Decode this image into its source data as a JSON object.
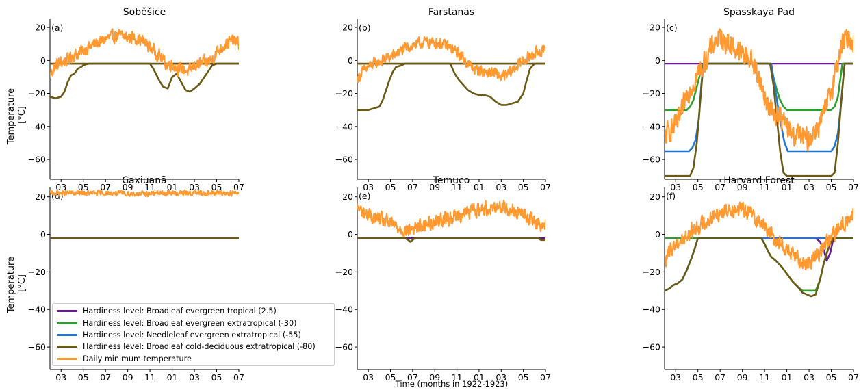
{
  "chart_data": {
    "type": "line",
    "xlabel": "Time (months in 1922-1923)",
    "ylabel": "Temperature\n[°C]",
    "x_tick_labels": [
      "03",
      "05",
      "07",
      "09",
      "11",
      "01",
      "03",
      "05",
      "07"
    ],
    "x_months": [
      "1922-02",
      "1923-07"
    ],
    "y_ticks": [
      20,
      0,
      -20,
      -40,
      -60
    ],
    "y_tick_labels": [
      "20",
      "0",
      "−20",
      "−40",
      "−60"
    ],
    "ylim": [
      -72,
      25
    ],
    "legend": {
      "placement": "lower-right of panel (d)",
      "entries": [
        {
          "label": "Hardiness level: Broadleaf evergreen tropical (2.5)",
          "color": "#6a1b9a"
        },
        {
          "label": "Hardiness level: Broadleaf evergreen extratropical (-30)",
          "color": "#2ca02c"
        },
        {
          "label": "Hardiness level: Needleleaf evergreen extratropical (-55)",
          "color": "#1f77d4"
        },
        {
          "label": "Hardiness level: Broadleaf cold-deciduous extratropical (-80)",
          "color": "#6b5a14"
        },
        {
          "label": "Daily minimum temperature",
          "color": "#ff9a33"
        }
      ]
    },
    "panels": [
      {
        "title": "Soběšice",
        "letter": "(a)",
        "temperature": {
          "x": [
            0,
            0.5,
            1,
            1.5,
            2,
            2.5,
            3,
            3.5,
            4,
            4.5,
            5,
            5.5,
            6,
            6.5,
            7,
            7.5,
            8,
            8.5,
            9,
            9.5,
            10,
            10.5,
            11,
            11.5,
            12,
            12.5,
            13,
            13.5,
            14,
            14.5,
            15,
            15.5,
            16,
            16.5,
            17
          ],
          "y": [
            -9,
            -3,
            -1,
            0,
            3,
            4,
            6,
            8,
            10,
            11,
            13,
            14,
            15,
            15,
            14,
            14,
            13,
            11,
            8,
            5,
            2,
            -3,
            -2,
            -5,
            -5,
            -7,
            -3,
            -2,
            -1,
            0,
            5,
            8,
            11,
            12,
            10
          ],
          "amplitude": 4.5
        },
        "hardiness": [
          {
            "x": [
              0,
              0.5,
              1,
              1.3,
              1.6,
              1.9,
              2.2,
              2.5,
              2.8,
              3,
              3.2,
              3.5,
              17
            ],
            "y": [
              -22,
              -23,
              -22,
              -19,
              -13,
              -9,
              -8,
              -5,
              -4,
              -3,
              -2.5,
              -2,
              -2
            ]
          },
          {
            "x": [
              0,
              9,
              9.3,
              9.6,
              9.9,
              10.2,
              10.6,
              11.0,
              11.4,
              11.8,
              12.2,
              12.6,
              13.0,
              13.5,
              14.0,
              14.3,
              14.6,
              15,
              17
            ],
            "y": [
              -2,
              -2,
              -5,
              -9,
              -13,
              -16,
              -17,
              -10,
              -8,
              -13,
              -18,
              -19,
              -17,
              -14,
              -9,
              -6,
              -3,
              -2,
              -2
            ]
          }
        ]
      },
      {
        "title": "Farstanäs",
        "letter": "(b)",
        "temperature": {
          "x": [
            0,
            0.5,
            1,
            1.5,
            2,
            2.5,
            3,
            3.5,
            4,
            4.5,
            5,
            5.5,
            6,
            6.5,
            7,
            7.5,
            8,
            8.5,
            9,
            9.5,
            10,
            10.5,
            11,
            11.5,
            12,
            12.5,
            13,
            13.5,
            14,
            14.5,
            15,
            15.5,
            16,
            16.5,
            17
          ],
          "y": [
            -11,
            -7,
            -4,
            -2,
            -1,
            1,
            2,
            4,
            6,
            8,
            9,
            10,
            11,
            11,
            11,
            10,
            9,
            7,
            5,
            2,
            -2,
            -5,
            -6,
            -7,
            -7,
            -8,
            -10,
            -9,
            -6,
            -3,
            0,
            2,
            4,
            6,
            5
          ],
          "amplitude": 4
        },
        "hardiness": [
          {
            "x": [
              0,
              1,
              2,
              2.3,
              2.6,
              2.9,
              3.2,
              3.5,
              4,
              4.3,
              17
            ],
            "y": [
              -30,
              -30,
              -28,
              -24,
              -18,
              -12,
              -7,
              -4,
              -3,
              -2,
              -2
            ]
          },
          {
            "x": [
              0,
              8.4,
              8.8,
              9.2,
              9.6,
              10.0,
              10.5,
              11,
              11.5,
              12,
              12.5,
              13,
              13.5,
              14,
              14.5,
              15.0,
              15.3,
              15.6,
              16,
              17
            ],
            "y": [
              -2,
              -2,
              -8,
              -12,
              -15,
              -18,
              -20,
              -21,
              -21,
              -22,
              -25,
              -27,
              -27,
              -26,
              -25,
              -20,
              -12,
              -5,
              -2,
              -2
            ]
          }
        ]
      },
      {
        "title": "Spasskaya Pad",
        "letter": "(c)",
        "temperature": {
          "x": [
            0,
            0.5,
            1,
            1.5,
            2,
            2.5,
            3,
            3.5,
            4,
            4.5,
            5,
            5.5,
            6,
            6.5,
            7,
            7.5,
            8,
            8.5,
            9,
            9.5,
            10,
            10.5,
            11,
            11.5,
            12,
            12.5,
            13,
            13.5,
            14,
            14.5,
            15,
            15.5,
            16,
            16.5,
            17
          ],
          "y": [
            -47,
            -42,
            -40,
            -33,
            -20,
            -15,
            -8,
            -3,
            5,
            11,
            14,
            12,
            9,
            6,
            4,
            2,
            -2,
            -10,
            -22,
            -30,
            -32,
            -35,
            -40,
            -45,
            -45,
            -47,
            -48,
            -42,
            -38,
            -30,
            -18,
            -3,
            10,
            14,
            12
          ],
          "amplitude": 8
        },
        "hardiness": [
          {
            "x": [
              0,
              2.0,
              2.3,
              2.6,
              2.9,
              3.2,
              3.5,
              9.5,
              9.8,
              10.1,
              10.4,
              10.7,
              11,
              15.0,
              15.3,
              15.6,
              16,
              17
            ],
            "y": [
              -30,
              -30,
              -28,
              -24,
              -16,
              -8,
              -2,
              -2,
              -10,
              -18,
              -24,
              -28,
              -30,
              -30,
              -28,
              -22,
              -2,
              -2
            ]
          },
          {
            "x": [
              0,
              2.2,
              2.5,
              2.8,
              3.1,
              3.3,
              3.5,
              9.6,
              9.9,
              10.2,
              10.5,
              10.8,
              11.1,
              11.5,
              15.0,
              15.3,
              15.6,
              15.9,
              16.2,
              17
            ],
            "y": [
              -55,
              -55,
              -53,
              -48,
              -35,
              -15,
              -2,
              -2,
              -15,
              -28,
              -40,
              -50,
              -55,
              -55,
              -55,
              -52,
              -44,
              -25,
              -2,
              -2
            ]
          },
          {
            "x": [
              0,
              2.3,
              2.6,
              2.9,
              3.2,
              3.5,
              9.5,
              9.8,
              10.1,
              10.4,
              10.7,
              11,
              11.4,
              15.0,
              15.3,
              15.6,
              15.9,
              16.2,
              17
            ],
            "y": [
              -70,
              -70,
              -65,
              -50,
              -25,
              -2,
              -2,
              -15,
              -35,
              -55,
              -68,
              -70,
              -70,
              -70,
              -68,
              -50,
              -25,
              -2,
              -2
            ]
          }
        ]
      },
      {
        "title": "Caxiuanã",
        "letter": "(d)",
        "temperature": {
          "x": [
            0,
            2,
            4,
            6,
            8,
            10,
            12,
            14,
            16,
            17
          ],
          "y": [
            22,
            22,
            22,
            22,
            21.5,
            22,
            22,
            22,
            22,
            22
          ],
          "amplitude": 1.6
        },
        "hardiness": [
          {
            "x": [
              0,
              15.8,
              17
            ],
            "y": [
              -2,
              -2,
              -2
            ]
          }
        ]
      },
      {
        "title": "Temuco",
        "letter": "(e)",
        "temperature": {
          "x": [
            0,
            0.5,
            1,
            1.5,
            2,
            2.5,
            3,
            3.5,
            4,
            4.5,
            5,
            5.5,
            6,
            6.5,
            7,
            7.5,
            8,
            8.5,
            9,
            9.5,
            10,
            10.5,
            11,
            11.5,
            12,
            12.5,
            13,
            13.5,
            14,
            14.5,
            15,
            15.5,
            16,
            16.5,
            17
          ],
          "y": [
            14,
            12,
            10,
            9,
            8,
            7,
            6,
            4,
            3,
            2,
            3,
            4,
            5,
            6,
            7,
            8,
            8,
            9,
            10,
            11,
            12,
            13,
            13,
            14,
            14,
            15,
            15,
            14,
            13,
            12,
            10,
            9,
            7,
            6,
            5
          ],
          "amplitude": 4.5
        },
        "hardiness": [
          {
            "x": [
              0,
              4.3,
              4.6,
              4.8,
              5.0,
              5.2,
              16.3,
              16.6,
              17
            ],
            "y": [
              -2,
              -2,
              -3,
              -4,
              -3,
              -2,
              -2,
              -3,
              -3
            ]
          }
        ]
      },
      {
        "title": "Harvard Forest",
        "letter": "(f)",
        "temperature": {
          "x": [
            0,
            0.5,
            1,
            1.5,
            2,
            2.5,
            3,
            3.5,
            4,
            4.5,
            5,
            5.5,
            6,
            6.5,
            7,
            7.5,
            8,
            8.5,
            9,
            9.5,
            10,
            10.5,
            11,
            11.5,
            12,
            12.5,
            13,
            13.5,
            14,
            14.5,
            15,
            15.5,
            16,
            16.5,
            17
          ],
          "y": [
            -15,
            -9,
            -5,
            -3,
            -1,
            2,
            4,
            6,
            8,
            10,
            12,
            13,
            14,
            14,
            13,
            12,
            10,
            7,
            4,
            1,
            -3,
            -5,
            -8,
            -11,
            -13,
            -14,
            -15,
            -12,
            -9,
            -5,
            -2,
            2,
            5,
            8,
            10
          ],
          "amplitude": 5
        },
        "hardiness": [
          {
            "x": [
              0,
              13.6,
              14.0,
              14.3,
              14.6,
              14.9,
              15.2,
              17
            ],
            "y": [
              -2,
              -2,
              -4,
              -8,
              -14,
              -10,
              -2,
              -2
            ]
          },
          {
            "x": [
              0,
              0.4,
              0.8,
              1.2,
              1.6,
              2.0,
              2.4,
              2.7,
              3.0,
              17
            ],
            "y": [
              -30,
              -29,
              -27,
              -26,
              -24,
              -19,
              -13,
              -8,
              -2,
              -2
            ]
          },
          {
            "x": [
              0,
              8.7,
              9.0,
              9.3,
              9.6,
              10.0,
              10.5,
              11.0,
              11.5,
              12.0,
              12.4,
              12.8,
              13.2,
              13.6,
              14.0,
              14.3,
              14.6,
              14.9,
              15.2,
              17
            ],
            "y": [
              -2,
              -2,
              -5,
              -9,
              -12,
              -14,
              -17,
              -21,
              -25,
              -28,
              -30,
              -30,
              -30,
              -30,
              -24,
              -16,
              -10,
              -5,
              -2,
              -2
            ]
          },
          {
            "x": [
              0,
              0.4,
              0.8,
              1.2,
              1.6,
              2.0,
              2.4,
              2.7,
              3.0,
              8.7,
              9.0,
              9.3,
              9.6,
              10.0,
              10.5,
              11.0,
              11.5,
              12.0,
              12.4,
              12.8,
              13.2,
              13.6,
              14.0,
              14.3,
              14.6,
              14.9,
              15.2,
              17
            ],
            "y": [
              -30,
              -29,
              -27,
              -26,
              -24,
              -19,
              -13,
              -8,
              -2,
              -2,
              -5,
              -9,
              -12,
              -14,
              -17,
              -21,
              -25,
              -28,
              -31,
              -32,
              -33,
              -32,
              -24,
              -16,
              -10,
              -5,
              -2,
              -2
            ]
          }
        ]
      }
    ]
  }
}
